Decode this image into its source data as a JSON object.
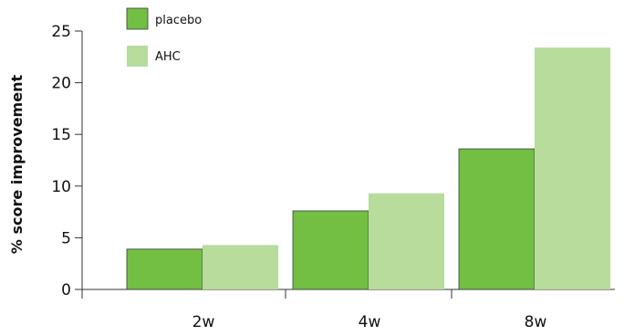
{
  "chart_data": {
    "type": "bar",
    "title": "",
    "xlabel": "",
    "ylabel": "% score improvement",
    "categories": [
      "2w",
      "4w",
      "8w"
    ],
    "series": [
      {
        "name": "placebo",
        "values": [
          3.9,
          7.6,
          13.6
        ],
        "color": "#72bf44"
      },
      {
        "name": "AHC",
        "values": [
          4.3,
          9.3,
          23.4
        ],
        "color": "#b7dc9b"
      }
    ],
    "ylim": [
      0,
      25
    ],
    "yticks": [
      0,
      5,
      10,
      15,
      20,
      25
    ],
    "grid": false,
    "legend": "top-left"
  }
}
